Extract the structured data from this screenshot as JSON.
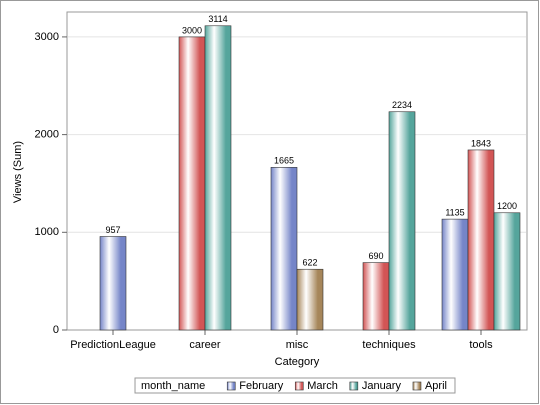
{
  "chart_data": {
    "type": "bar",
    "categories": [
      "PredictionLeague",
      "career",
      "misc",
      "techniques",
      "tools"
    ],
    "series": [
      {
        "name": "February",
        "color": "#7585c8",
        "values": [
          957,
          null,
          1665,
          null,
          1135
        ]
      },
      {
        "name": "March",
        "color": "#d25555",
        "values": [
          null,
          3000,
          null,
          690,
          1843
        ]
      },
      {
        "name": "January",
        "color": "#55a59c",
        "values": [
          null,
          3114,
          null,
          2234,
          1200
        ]
      },
      {
        "name": "April",
        "color": "#a6865a",
        "values": [
          null,
          null,
          622,
          null,
          null
        ]
      }
    ],
    "xlabel": "Category",
    "ylabel": "Views (Sum)",
    "legend_title": "month_name",
    "ylim": [
      0,
      3255
    ],
    "yticks": [
      0,
      1000,
      2000,
      3000
    ],
    "grid": true,
    "legend": "bottom"
  }
}
